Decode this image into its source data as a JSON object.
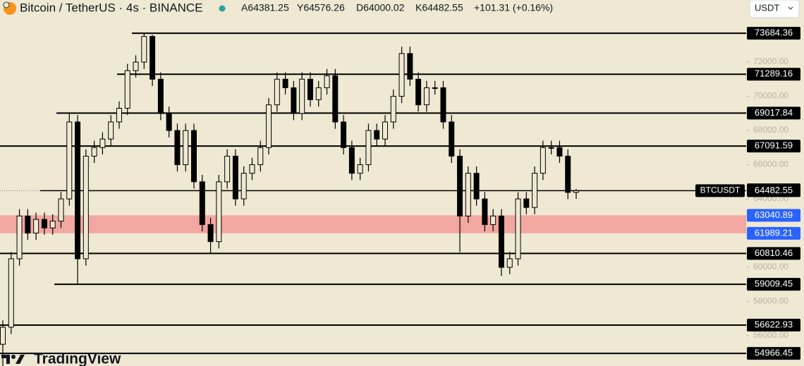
{
  "chart_data": {
    "type": "candlestick",
    "title": "Bitcoin / TetherUS · 4s · BINANCE",
    "legend_texts": [
      "A64381.25",
      "Y64576.26",
      "D64000.02",
      "K64482.55",
      "+101.31 (+0.16%)"
    ],
    "currency": "USDT",
    "symbol_label": "BTCUSDT",
    "watermark": "TradingView",
    "candles": {
      "open": [
        55500,
        56500,
        60500,
        63000,
        62000,
        62800,
        62300,
        62700,
        64000,
        68500,
        60500,
        66500,
        67000,
        67500,
        68500,
        69300,
        71500,
        72000,
        73500,
        71000,
        69000,
        68000,
        66000,
        68000,
        65000,
        62500,
        61500,
        65000,
        66500,
        64000,
        65500,
        66000,
        67000,
        69500,
        71000,
        70500,
        69000,
        71000,
        69800,
        70500,
        71200,
        68500,
        67000,
        65500,
        66000,
        68000,
        67500,
        68500,
        70000,
        72500,
        71000,
        69500,
        70500,
        70500,
        68500,
        66500,
        63000,
        65500,
        64000,
        62500,
        63000,
        60000,
        60500,
        64000,
        63500,
        65500,
        67000,
        67000,
        66500,
        64381.25
      ],
      "high": [
        56900,
        60900,
        63400,
        63400,
        63200,
        63200,
        63100,
        64400,
        69018,
        68900,
        66900,
        67400,
        67900,
        68900,
        69700,
        71900,
        72400,
        73684,
        73600,
        71400,
        69400,
        68400,
        68400,
        68400,
        65400,
        62900,
        65400,
        66900,
        66900,
        65900,
        66400,
        67400,
        69900,
        71400,
        71400,
        70900,
        71400,
        71400,
        70900,
        71600,
        71600,
        68900,
        67400,
        66400,
        68400,
        68400,
        68900,
        70400,
        72900,
        72900,
        71400,
        70900,
        70900,
        70900,
        68900,
        66900,
        65900,
        65900,
        64400,
        63400,
        63400,
        60900,
        64400,
        64400,
        65900,
        67400,
        67400,
        67400,
        66900,
        64576.26
      ],
      "low": [
        54200,
        56100,
        60100,
        61600,
        61600,
        61900,
        61900,
        62300,
        63600,
        59009,
        60100,
        66100,
        66600,
        67100,
        68100,
        68900,
        71100,
        71600,
        70600,
        68600,
        67600,
        65600,
        65600,
        64600,
        62100,
        60810,
        61100,
        64600,
        63600,
        63600,
        65100,
        65600,
        66600,
        69100,
        70100,
        68600,
        68600,
        69400,
        69400,
        70100,
        68100,
        66600,
        65100,
        65100,
        65600,
        67100,
        67100,
        68100,
        69600,
        70600,
        69100,
        69100,
        70100,
        68100,
        66100,
        60900,
        62600,
        63600,
        62100,
        62100,
        59500,
        59600,
        60100,
        63100,
        63100,
        65100,
        66600,
        66100,
        63981,
        64000.02
      ],
      "close": [
        56500,
        60500,
        63000,
        62000,
        62800,
        62300,
        62700,
        64000,
        68500,
        60500,
        66500,
        67000,
        67500,
        68500,
        69300,
        71500,
        72000,
        73500,
        71000,
        69000,
        68000,
        66000,
        68000,
        65000,
        62500,
        61500,
        65000,
        66500,
        64000,
        65500,
        66000,
        67000,
        69500,
        71000,
        70500,
        69000,
        71000,
        69800,
        70500,
        71200,
        68500,
        67000,
        65500,
        66000,
        68000,
        67500,
        68500,
        70000,
        72500,
        71000,
        69500,
        70500,
        70500,
        68500,
        66500,
        63000,
        65500,
        64000,
        62500,
        63000,
        60000,
        60500,
        64000,
        63500,
        65500,
        67000,
        67000,
        66500,
        64381.25,
        64482.55
      ]
    },
    "levels": [
      73684.36,
      71289.16,
      69017.84,
      67091.59,
      60810.46,
      59009.45,
      56622.93,
      54966.45
    ],
    "marker": 64534.99,
    "zone": [
      61989.21,
      63040.89
    ],
    "ylim": [
      54230,
      75630
    ],
    "yticks": [
      {
        "value": 56000,
        "label": "56000.00"
      },
      {
        "value": 58000,
        "label": "58000.00"
      },
      {
        "value": 60000,
        "label": "60000.00"
      },
      {
        "value": 62000,
        "label": "62000.00"
      },
      {
        "value": 64000,
        "label": "64000.00"
      },
      {
        "value": 66000,
        "label": "66000.00"
      },
      {
        "value": 68000,
        "label": "68000.00"
      },
      {
        "value": 70000,
        "label": "70000.00"
      },
      {
        "value": 72000,
        "label": "72000.00"
      }
    ]
  }
}
